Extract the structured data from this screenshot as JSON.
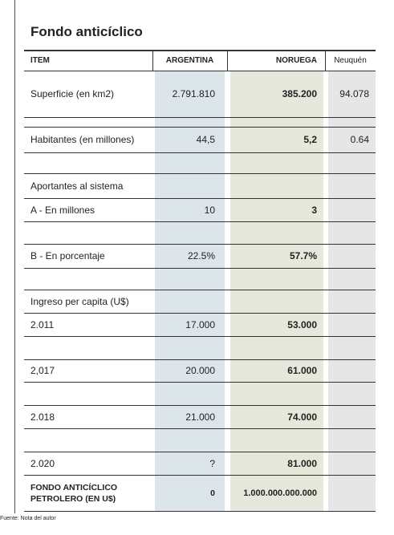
{
  "title": "Fondo anticíclico",
  "table": {
    "columns": [
      "ITEM",
      "ARGENTINA",
      "NORUEGA",
      "Neuquén"
    ],
    "rows": [
      [
        "Superficie (en km2)",
        "2.791.810",
        "385.200",
        "94.078"
      ],
      [
        "Habitantes (en millones)",
        "44,5",
        "5,2",
        "0.64"
      ],
      [
        "Aportantes al sistema",
        null,
        null,
        null
      ],
      [
        "A - En millones",
        "10",
        "3",
        null
      ],
      [
        "B - En porcentaje",
        "22.5%",
        "57.7%",
        null
      ],
      [
        "Ingreso per capita (U$)",
        null,
        null,
        null
      ],
      [
        "2.011",
        "17.000",
        "53.000",
        null
      ],
      [
        "2,017",
        "20.000",
        "61.000",
        null
      ],
      [
        "2.018",
        "21.000",
        "74.000",
        null
      ],
      [
        "2.020",
        "?",
        "81.000",
        null
      ],
      [
        "FONDO ANTICÍCLICO\nPETROLERO (EN U$)",
        "0",
        "1.000.000.000.000",
        null
      ]
    ]
  },
  "source": "Fuente: Nota del autor"
}
